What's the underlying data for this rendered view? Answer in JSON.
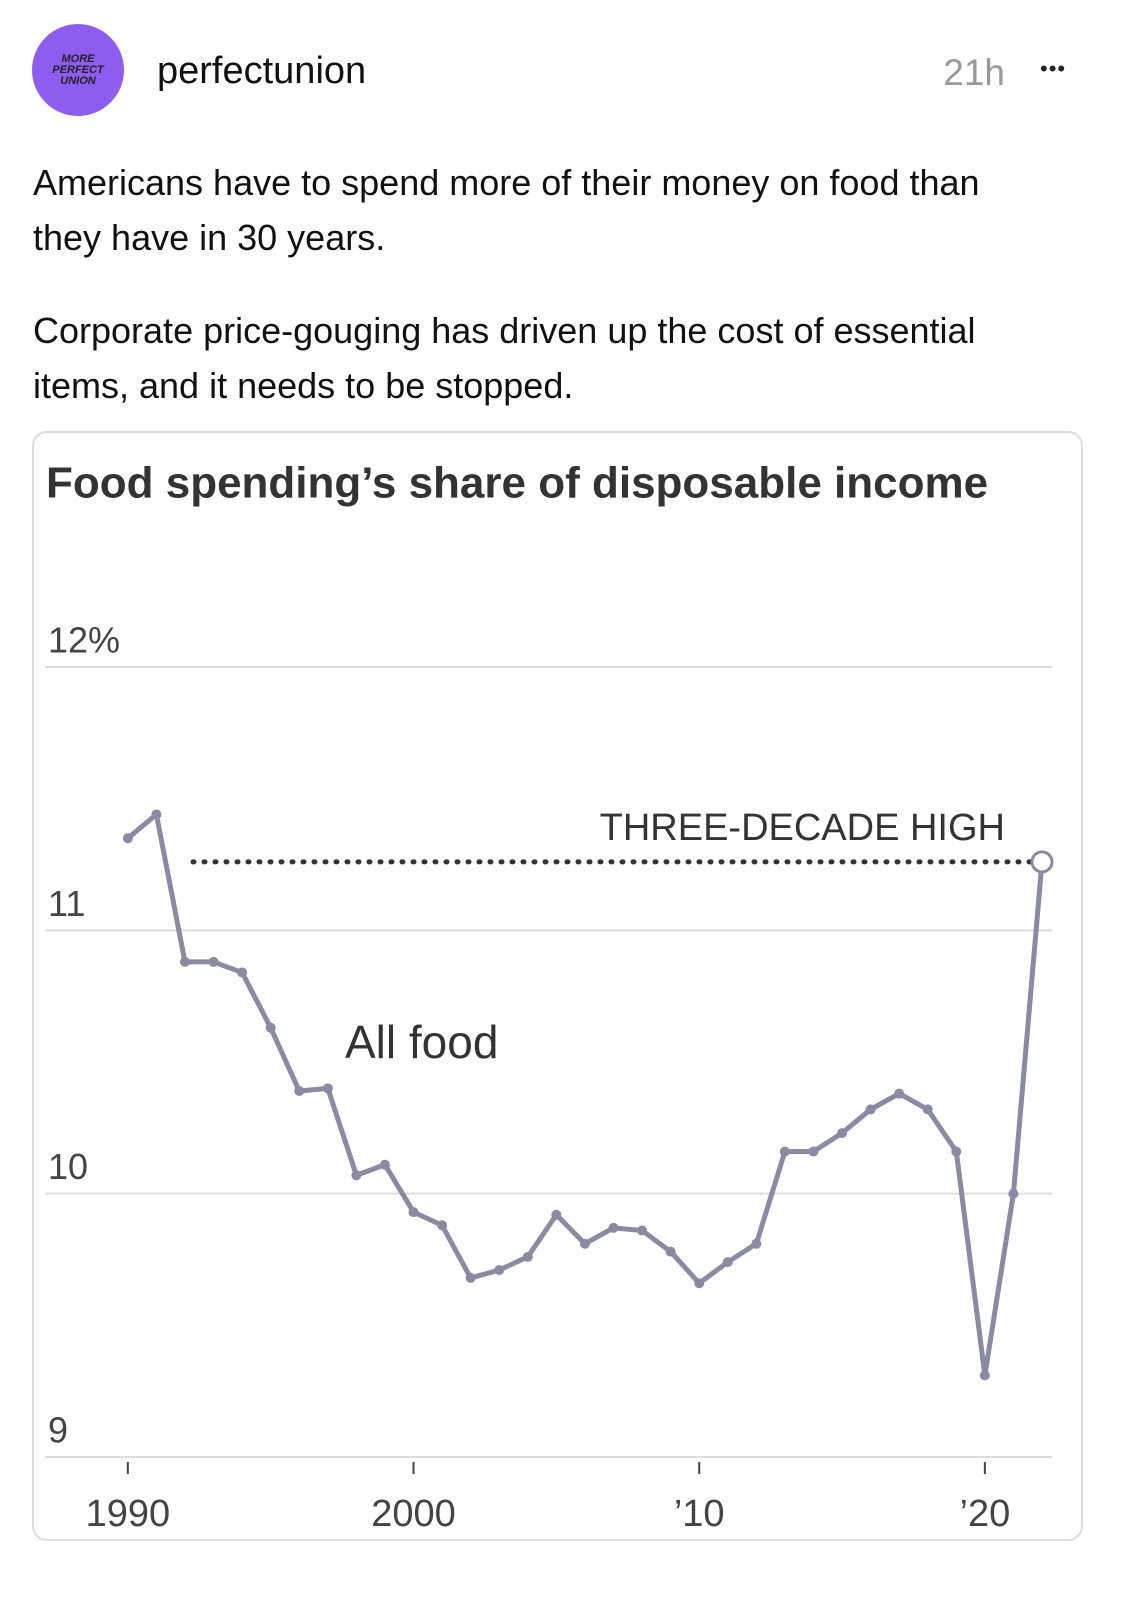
{
  "post": {
    "avatar_text": [
      "MORE",
      "PERFECT",
      "UNION"
    ],
    "username": "perfectunion",
    "time": "21h",
    "menu": "•••",
    "paragraphs": [
      "Americans have to spend more of their money on food than they have in 30 years.",
      "Corporate price-gouging has driven up the cost of essential items, and it needs to be stopped."
    ]
  },
  "chart_data": {
    "type": "line",
    "title": "Food spending’s share of disposable income",
    "x": [
      1990,
      1991,
      1992,
      1993,
      1994,
      1995,
      1996,
      1997,
      1998,
      1999,
      2000,
      2001,
      2002,
      2003,
      2004,
      2005,
      2006,
      2007,
      2008,
      2009,
      2010,
      2011,
      2012,
      2013,
      2014,
      2015,
      2016,
      2017,
      2018,
      2019,
      2020,
      2021,
      2022
    ],
    "series": [
      {
        "name": "All food",
        "color": "#8a8aa2",
        "values": [
          11.35,
          11.44,
          10.88,
          10.88,
          10.84,
          10.63,
          10.39,
          10.4,
          10.07,
          10.11,
          9.93,
          9.88,
          9.68,
          9.71,
          9.76,
          9.92,
          9.81,
          9.87,
          9.86,
          9.78,
          9.66,
          9.74,
          9.81,
          10.16,
          10.16,
          10.23,
          10.32,
          10.38,
          10.32,
          10.16,
          9.31,
          10.0,
          11.26
        ]
      }
    ],
    "reference_line": {
      "value": 11.26,
      "x_start": 1992,
      "x_end": 2022,
      "label": "THREE-DECADE HIGH"
    },
    "xlim": [
      1987.1,
      2022.35
    ],
    "xticks": [
      1990,
      2000,
      {
        "value": 2010,
        "label": "’10"
      },
      {
        "value": 2020,
        "label": "’20"
      }
    ],
    "ylim": [
      9,
      12
    ],
    "yticks": [
      9,
      10,
      11,
      {
        "value": 12,
        "label": "12%"
      }
    ],
    "grid": true
  }
}
